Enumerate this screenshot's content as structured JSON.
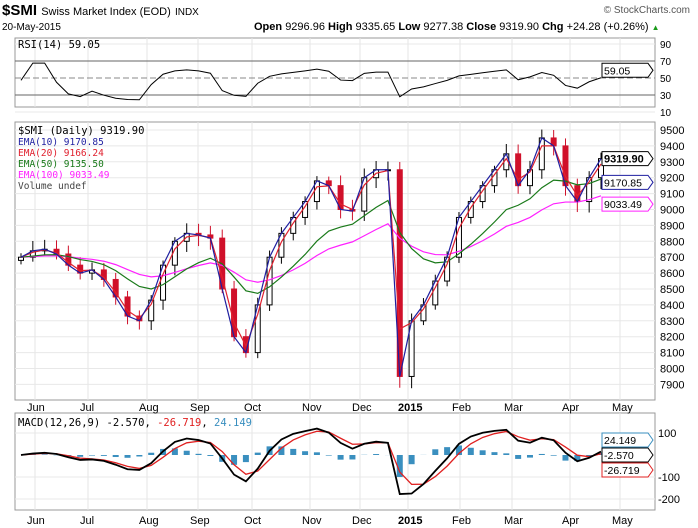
{
  "header": {
    "symbol": "$SMI",
    "name": "Swiss Market Index (EOD)",
    "exchange": "INDX",
    "date": "20-May-2015",
    "copyright": "© StockCharts.com",
    "open_label": "Open",
    "open": "9296.96",
    "high_label": "High",
    "high": "9335.65",
    "low_label": "Low",
    "low": "9277.38",
    "close_label": "Close",
    "close": "9319.90",
    "chg_label": "Chg",
    "chg": "+24.28 (+0.26%)"
  },
  "colors": {
    "ema10": "#1f1fa0",
    "ema20": "#e0202e",
    "ema50": "#1a7a1a",
    "ema100": "#ff20ff",
    "macd": "#000000",
    "signal": "#e02020",
    "hist": "#3a8fbf",
    "up": "#000000",
    "down": "#d0102a"
  },
  "chart_data": [
    {
      "type": "candlestick",
      "title": "$SMI (Daily) 9319.90",
      "panel": "price",
      "legend": [
        "$SMI (Daily) 9319.90",
        "EMA(10) 9170.85",
        "EMA(20) 9166.24",
        "EMA(50) 9135.50",
        "EMA(100) 9033.49",
        "Volume undef"
      ],
      "x_ticks": [
        "Jun",
        "Jul",
        "Aug",
        "Sep",
        "Oct",
        "Nov",
        "Dec",
        "2015",
        "Feb",
        "Mar",
        "Apr",
        "May"
      ],
      "y_ticks": [
        9500,
        9400,
        9300,
        9200,
        9100,
        9000,
        8900,
        8800,
        8700,
        8600,
        8500,
        8400,
        8300,
        8200,
        8100,
        8000,
        7900
      ],
      "ylim": [
        7850,
        9550
      ],
      "weekly_closes": [
        8700,
        8740,
        8750,
        8720,
        8650,
        8600,
        8620,
        8560,
        8450,
        8330,
        8300,
        8430,
        8650,
        8800,
        8850,
        8840,
        8820,
        8500,
        8200,
        8100,
        8400,
        8700,
        8850,
        8950,
        9050,
        9180,
        9150,
        9000,
        8990,
        9200,
        9250,
        9250,
        7950,
        8300,
        8400,
        8550,
        8700,
        8950,
        9050,
        9150,
        9250,
        9350,
        9150,
        9250,
        9450,
        9400,
        9150,
        9050,
        9200,
        9319.9
      ],
      "value_tags": {
        "close": "9319.90",
        "ema10": "9170.85",
        "ema100": "9033.49"
      }
    },
    {
      "type": "line",
      "title": "RSI(14) 59.05",
      "panel": "rsi",
      "y_ticks": [
        90,
        70,
        50,
        30,
        10
      ],
      "ylim": [
        0,
        100
      ],
      "value_tag": "59.05"
    },
    {
      "type": "line",
      "title": "MACD(12,26,9)",
      "macd": "-2.570",
      "signal": "-26.719",
      "hist": "24.149",
      "panel": "macd",
      "y_ticks": [
        100,
        -100,
        -200
      ],
      "ylim": [
        -260,
        190
      ],
      "value_tags": [
        "24.149",
        "-2.570",
        "-26.719"
      ]
    }
  ]
}
